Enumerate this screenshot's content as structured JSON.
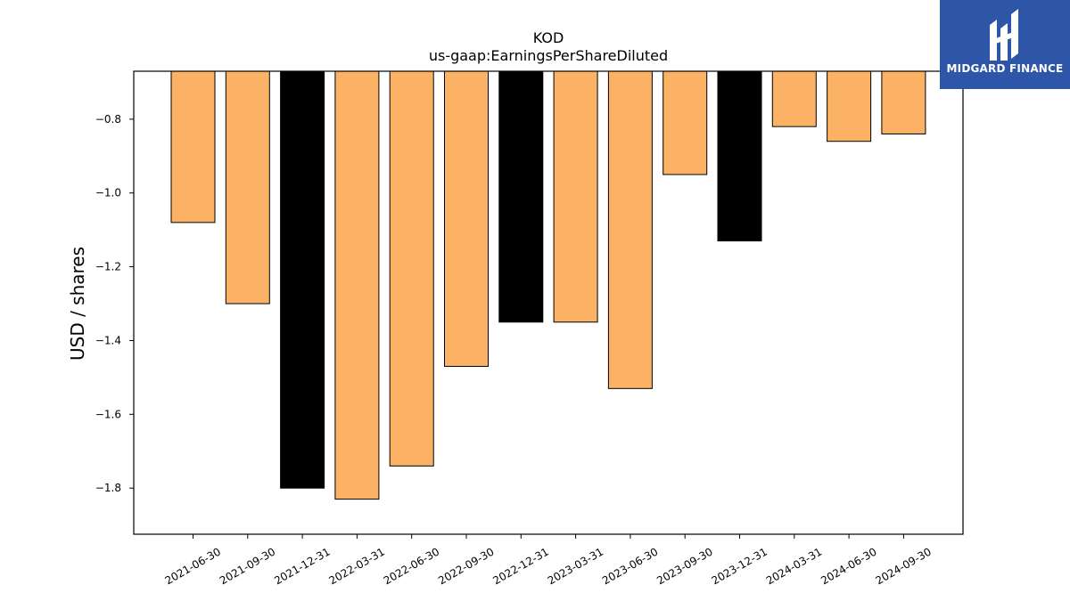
{
  "brand": {
    "name": "MIDGARD FINANCE",
    "logo_icon": "midgard-logo-icon",
    "background": "#2d55a8"
  },
  "chart_data": {
    "type": "bar",
    "title": "KOD",
    "subtitle": "us-gaap:EarningsPerShareDiluted",
    "xlabel": "",
    "ylabel": "USD / shares",
    "ylim": [
      -1.925,
      -0.67
    ],
    "y_ticks": [
      -0.8,
      -1.0,
      -1.2,
      -1.4,
      -1.6,
      -1.8
    ],
    "y_tick_labels": [
      "−0.8",
      "−1.0",
      "−1.2",
      "−1.4",
      "−1.6",
      "−1.8"
    ],
    "grid": false,
    "bar_baseline": -0.67,
    "categories": [
      "2021-06-30",
      "2021-09-30",
      "2021-12-31",
      "2022-03-31",
      "2022-06-30",
      "2022-09-30",
      "2022-12-31",
      "2023-03-31",
      "2023-06-30",
      "2023-09-30",
      "2023-12-31",
      "2024-03-31",
      "2024-06-30",
      "2024-09-30"
    ],
    "values": [
      -1.08,
      -1.3,
      -1.8,
      -1.83,
      -1.74,
      -1.47,
      -1.35,
      -1.35,
      -1.53,
      -0.95,
      -1.13,
      -0.82,
      -0.86,
      -0.84
    ],
    "colors": [
      "#fbb264",
      "#fbb264",
      "#000000",
      "#fbb264",
      "#fbb264",
      "#fbb264",
      "#000000",
      "#fbb264",
      "#fbb264",
      "#fbb264",
      "#000000",
      "#fbb264",
      "#fbb264",
      "#fbb264"
    ]
  }
}
